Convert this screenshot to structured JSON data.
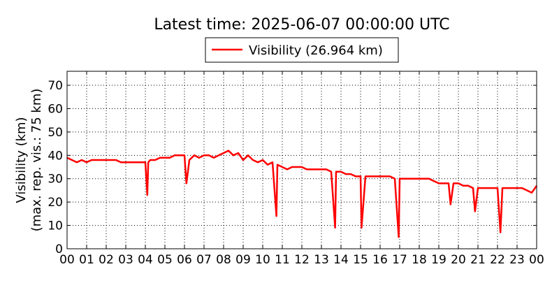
{
  "chart_data": {
    "type": "line",
    "title": "Latest time: 2025-06-07 00:00:00 UTC",
    "xlabel": "",
    "ylabel": "Visibility (km)",
    "ylabel2": "(max. rep. vis.: 75 km)",
    "xlim": [
      0,
      24
    ],
    "ylim": [
      0,
      76
    ],
    "x_ticks": [
      0,
      1,
      2,
      3,
      4,
      5,
      6,
      7,
      8,
      9,
      10,
      11,
      12,
      13,
      14,
      15,
      16,
      17,
      18,
      19,
      20,
      21,
      22,
      23,
      24
    ],
    "x_tick_labels": [
      "00",
      "01",
      "02",
      "03",
      "04",
      "05",
      "06",
      "07",
      "08",
      "09",
      "10",
      "11",
      "12",
      "13",
      "14",
      "15",
      "16",
      "17",
      "18",
      "19",
      "20",
      "21",
      "22",
      "23",
      "00"
    ],
    "y_ticks": [
      0,
      10,
      20,
      30,
      40,
      50,
      60,
      70
    ],
    "y_tick_labels": [
      "0",
      "10",
      "20",
      "30",
      "40",
      "50",
      "60",
      "70"
    ],
    "grid": true,
    "legend_position": "top-center",
    "series": [
      {
        "name": "Visibility (26.964 km)",
        "color": "#ff0000",
        "x": [
          0,
          0.25,
          0.5,
          0.75,
          1,
          1.25,
          1.5,
          1.75,
          2,
          2.25,
          2.5,
          2.75,
          3,
          3.25,
          3.5,
          3.75,
          4,
          4.1,
          4.15,
          4.25,
          4.5,
          4.75,
          5,
          5.25,
          5.5,
          5.75,
          6,
          6.1,
          6.25,
          6.5,
          6.75,
          7,
          7.25,
          7.5,
          7.75,
          8,
          8.25,
          8.5,
          8.75,
          9,
          9.25,
          9.5,
          9.75,
          10,
          10.25,
          10.5,
          10.7,
          10.75,
          11,
          11.25,
          11.5,
          11.75,
          12,
          12.25,
          12.5,
          12.75,
          13,
          13.25,
          13.5,
          13.7,
          13.75,
          14,
          14.25,
          14.5,
          14.75,
          15,
          15.05,
          15.25,
          15.5,
          15.75,
          16,
          16.25,
          16.5,
          16.75,
          16.95,
          17,
          17.25,
          17.5,
          17.75,
          18,
          18.25,
          18.5,
          18.75,
          19,
          19.25,
          19.5,
          19.6,
          19.75,
          20,
          20.25,
          20.5,
          20.75,
          20.85,
          21,
          21.25,
          21.5,
          21.75,
          22,
          22.15,
          22.25,
          22.5,
          22.75,
          23,
          23.25,
          23.5,
          23.75,
          24
        ],
        "y": [
          39,
          38,
          37,
          38,
          37,
          38,
          38,
          38,
          38,
          38,
          38,
          37,
          37,
          37,
          37,
          37,
          37,
          23,
          37,
          38,
          38,
          39,
          39,
          39,
          40,
          40,
          40,
          28,
          38,
          40,
          39,
          40,
          40,
          39,
          40,
          41,
          42,
          40,
          41,
          38,
          40,
          38,
          37,
          38,
          36,
          37,
          14,
          36,
          35,
          34,
          35,
          35,
          35,
          34,
          34,
          34,
          34,
          34,
          33,
          9,
          33,
          33,
          32,
          32,
          31,
          31,
          9,
          31,
          31,
          31,
          31,
          31,
          31,
          30,
          5,
          30,
          30,
          30,
          30,
          30,
          30,
          30,
          29,
          28,
          28,
          28,
          19,
          28,
          28,
          27,
          27,
          26,
          16,
          26,
          26,
          26,
          26,
          26,
          7,
          26,
          26,
          26,
          26,
          26,
          25,
          24,
          27
        ]
      }
    ]
  }
}
